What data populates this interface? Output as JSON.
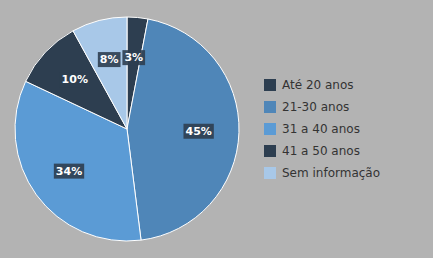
{
  "chart_data": {
    "type": "pie",
    "categories": [
      "Até 20 anos",
      "21-30 anos",
      "31 a 40 anos",
      "41 a 50 anos",
      "Sem informação"
    ],
    "values": [
      3,
      45,
      34,
      10,
      8
    ],
    "value_labels": [
      "3%",
      "45%",
      "34%",
      "10%",
      "8%"
    ],
    "colors": [
      "#2d3e50",
      "#4f86b8",
      "#5b9bd5",
      "#2d3e50",
      "#a8c8e8"
    ],
    "data_labels": true,
    "legend": "right"
  }
}
